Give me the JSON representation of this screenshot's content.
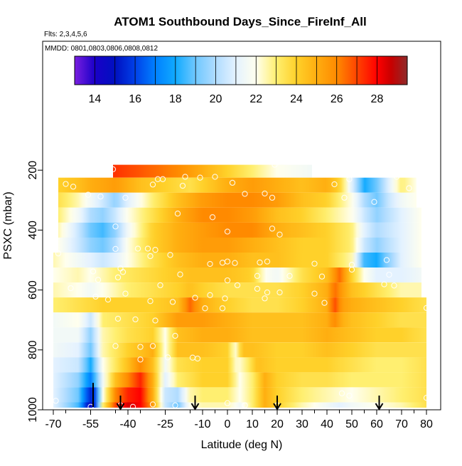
{
  "chart_data": {
    "type": "heatmap",
    "title": "ATOM1 Southbound Days_Since_FireInf_All",
    "flights_note": "Flts: 2,3,4,5,6",
    "dates_note": "MMDD: 0801,0803,0806,0808,0812",
    "xlabel": "Latitude (deg N)",
    "ylabel": "PSXC (mbar)",
    "xlim": [
      -70,
      80
    ],
    "ylim": [
      1000,
      0
    ],
    "x_ticks": [
      -70,
      -55,
      -40,
      -25,
      -10,
      0,
      10,
      20,
      30,
      40,
      50,
      60,
      70,
      80
    ],
    "x_tick_labels": [
      "-70",
      "-55",
      "-40",
      "-25",
      "-10",
      "0",
      "10",
      "20",
      "30",
      "40",
      "50",
      "60",
      "70",
      "80"
    ],
    "y_ticks": [
      200,
      400,
      600,
      800,
      1000
    ],
    "y_tick_labels": [
      "200",
      "400",
      "600",
      "800",
      "1000"
    ],
    "colorbar": {
      "range": [
        13,
        29.5
      ],
      "ticks": [
        14,
        16,
        18,
        20,
        22,
        24,
        26,
        28
      ],
      "tick_labels": [
        "14",
        "16",
        "18",
        "20",
        "22",
        "24",
        "26",
        "28"
      ],
      "stops": [
        {
          "value": 13,
          "color": "#7a1fe0"
        },
        {
          "value": 14,
          "color": "#1a00c8"
        },
        {
          "value": 15,
          "color": "#0010c0"
        },
        {
          "value": 16,
          "color": "#0040e8"
        },
        {
          "value": 17,
          "color": "#0080ff"
        },
        {
          "value": 18,
          "color": "#10aaff"
        },
        {
          "value": 19,
          "color": "#70c8ff"
        },
        {
          "value": 20,
          "color": "#b0dcff"
        },
        {
          "value": 21,
          "color": "#e4f2ff"
        },
        {
          "value": 22,
          "color": "#ffffee"
        },
        {
          "value": 23,
          "color": "#ffef70"
        },
        {
          "value": 24,
          "color": "#ffd12a"
        },
        {
          "value": 25,
          "color": "#ffae10"
        },
        {
          "value": 26,
          "color": "#ff8a00"
        },
        {
          "value": 27,
          "color": "#ff4400"
        },
        {
          "value": 28,
          "color": "#ff0000"
        },
        {
          "value": 28.7,
          "color": "#c80000"
        },
        {
          "value": 29.5,
          "color": "#8e2a2a"
        }
      ]
    },
    "rows": [
      {
        "p": 200,
        "xmin": -46,
        "xmax": 34,
        "kx": [
          -46,
          -40,
          -30,
          -20,
          -10,
          0,
          10,
          20,
          34
        ],
        "kv": [
          27.3,
          27,
          26.5,
          26,
          25,
          24,
          23,
          22,
          21.5
        ]
      },
      {
        "p": 250,
        "xmin": -68,
        "xmax": 76,
        "kx": [
          -68,
          -60,
          -55,
          -45,
          -35,
          -25,
          -15,
          0,
          10,
          20,
          30,
          40,
          45,
          50,
          55,
          60,
          65,
          70,
          76
        ],
        "kv": [
          24,
          24.5,
          25,
          25.5,
          24.5,
          24,
          23.5,
          25,
          25.5,
          25,
          24.5,
          25,
          24,
          21,
          18,
          19,
          21,
          23,
          22
        ]
      },
      {
        "p": 300,
        "xmin": -68,
        "xmax": 76,
        "kx": [
          -68,
          -60,
          -50,
          -45,
          -40,
          -30,
          -20,
          -10,
          0,
          10,
          20,
          30,
          40,
          50,
          55,
          60,
          65,
          70,
          76
        ],
        "kv": [
          23.5,
          22.5,
          20.5,
          19.5,
          21,
          23,
          24.5,
          25.5,
          26,
          26,
          25.5,
          24.5,
          24,
          22,
          20,
          19,
          20.5,
          21.5,
          22
        ]
      },
      {
        "p": 350,
        "xmin": -68,
        "xmax": 78,
        "kx": [
          -68,
          -60,
          -55,
          -50,
          -45,
          -40,
          -30,
          -20,
          -10,
          0,
          10,
          20,
          30,
          40,
          50,
          55,
          60,
          70,
          78
        ],
        "kv": [
          23,
          21.5,
          20,
          19.5,
          20.5,
          22,
          23.5,
          25,
          26,
          26,
          25.5,
          24.5,
          24,
          23,
          22,
          20.5,
          19.5,
          21,
          22
        ]
      },
      {
        "p": 400,
        "xmin": -68,
        "xmax": 78,
        "kx": [
          -68,
          -60,
          -55,
          -50,
          -45,
          -40,
          -30,
          -20,
          -10,
          0,
          10,
          20,
          30,
          40,
          50,
          55,
          60,
          70,
          78
        ],
        "kv": [
          22.5,
          20.5,
          19,
          18.5,
          19.5,
          21.5,
          24,
          25,
          25.5,
          26,
          26,
          25,
          24.5,
          24,
          23,
          21,
          20,
          21,
          22
        ]
      },
      {
        "p": 450,
        "xmin": -68,
        "xmax": 78,
        "kx": [
          -68,
          -60,
          -55,
          -50,
          -45,
          -40,
          -30,
          -20,
          -10,
          0,
          10,
          20,
          30,
          40,
          50,
          55,
          60,
          70,
          78
        ],
        "kv": [
          22,
          20.5,
          19.5,
          19,
          20,
          22,
          24,
          25,
          25.5,
          25.5,
          25,
          24.5,
          24,
          24,
          23,
          20.5,
          19.5,
          21,
          22
        ]
      },
      {
        "p": 500,
        "xmin": -70,
        "xmax": 78,
        "kx": [
          -70,
          -60,
          -55,
          -50,
          -45,
          -40,
          -30,
          -20,
          -10,
          0,
          10,
          20,
          30,
          40,
          50,
          55,
          60,
          65,
          70,
          78
        ],
        "kv": [
          22.5,
          21.5,
          21,
          20.5,
          21,
          22,
          23.5,
          24.5,
          25,
          25,
          24.5,
          24.5,
          24,
          24,
          22.5,
          18.5,
          18,
          19.5,
          21,
          22
        ]
      },
      {
        "p": 550,
        "xmin": -70,
        "xmax": 78,
        "kx": [
          -70,
          -60,
          -55,
          -45,
          -35,
          -25,
          -15,
          0,
          10,
          15,
          20,
          30,
          40,
          45,
          50,
          55,
          60,
          70,
          78
        ],
        "kv": [
          22,
          22.5,
          22,
          23,
          23.5,
          24,
          24.5,
          24.5,
          24,
          22,
          21.5,
          23.5,
          24.5,
          26.5,
          24,
          22,
          21,
          21,
          21.5
        ]
      },
      {
        "p": 600,
        "xmin": -70,
        "xmax": 78,
        "kx": [
          -70,
          -60,
          -55,
          -50,
          -40,
          -30,
          -20,
          -15,
          -10,
          0,
          10,
          20,
          30,
          40,
          43,
          46,
          50,
          60,
          70,
          78
        ],
        "kv": [
          22.5,
          22,
          21.5,
          22,
          23,
          23.5,
          24,
          24.5,
          24,
          23.5,
          23.5,
          23.5,
          24,
          25,
          26.5,
          25.5,
          24.5,
          23.5,
          22.5,
          22.5
        ]
      },
      {
        "p": 650,
        "xmin": -70,
        "xmax": 80,
        "kx": [
          -70,
          -60,
          -50,
          -40,
          -30,
          -20,
          -15,
          -10,
          0,
          10,
          20,
          30,
          40,
          43,
          46,
          50,
          60,
          70,
          80
        ],
        "kv": [
          23,
          23.5,
          24,
          24,
          24,
          24.5,
          26.5,
          25,
          24,
          23.5,
          23.5,
          24,
          25,
          27,
          25.5,
          25,
          24.5,
          24,
          23.5
        ]
      },
      {
        "p": 700,
        "xmin": -70,
        "xmax": 80,
        "kx": [
          -70,
          -60,
          -55,
          -50,
          -40,
          -30,
          -20,
          -10,
          0,
          10,
          20,
          30,
          40,
          43,
          46,
          50,
          60,
          70,
          80
        ],
        "kv": [
          21.5,
          22,
          20.5,
          23,
          23.5,
          24,
          25.5,
          25.5,
          25,
          24.5,
          24.5,
          24.5,
          25,
          26,
          25,
          24.5,
          24,
          23.5,
          23.5
        ]
      },
      {
        "p": 750,
        "xmin": -70,
        "xmax": 80,
        "kx": [
          -70,
          -60,
          -55,
          -50,
          -40,
          -30,
          -25,
          -20,
          -10,
          0,
          10,
          20,
          30,
          40,
          50,
          60,
          70,
          80
        ],
        "kv": [
          21.5,
          21.5,
          19.5,
          22.5,
          23.5,
          24,
          22,
          24.5,
          25,
          25,
          24.5,
          24.5,
          24.5,
          25,
          24.5,
          24,
          24,
          23.5
        ]
      },
      {
        "p": 800,
        "xmin": -70,
        "xmax": 80,
        "kx": [
          -70,
          -60,
          -55,
          -50,
          -40,
          -30,
          -25,
          -20,
          -10,
          0,
          3,
          6,
          10,
          20,
          30,
          40,
          50,
          60,
          70,
          80
        ],
        "kv": [
          21.5,
          21,
          19,
          22.5,
          24,
          25,
          22,
          24.5,
          24.5,
          24,
          22,
          24.5,
          24.5,
          24,
          24,
          24.5,
          24,
          23.5,
          23.5,
          23.5
        ]
      },
      {
        "p": 850,
        "xmin": -70,
        "xmax": 80,
        "kx": [
          -70,
          -60,
          -55,
          -50,
          -40,
          -35,
          -30,
          -25,
          -20,
          -10,
          0,
          4,
          8,
          12,
          20,
          30,
          40,
          50,
          60,
          70,
          80
        ],
        "kv": [
          21,
          20.5,
          18,
          22,
          24.5,
          26,
          24.5,
          21.5,
          23.5,
          24,
          24,
          22,
          23,
          24.5,
          24,
          24,
          24,
          23.5,
          23,
          23,
          23.5
        ]
      },
      {
        "p": 900,
        "xmin": -70,
        "xmax": 80,
        "kx": [
          -70,
          -60,
          -55,
          -50,
          -45,
          -40,
          -35,
          -30,
          -25,
          -20,
          -10,
          0,
          5,
          10,
          15,
          20,
          30,
          40,
          50,
          60,
          70,
          80
        ],
        "kv": [
          21,
          19.5,
          17,
          21.5,
          24.5,
          26,
          27.5,
          25,
          21,
          23,
          24,
          24,
          22,
          23,
          25,
          24,
          23.5,
          23.5,
          23,
          23,
          23,
          23.5
        ]
      },
      {
        "p": 950,
        "xmin": -70,
        "xmax": 80,
        "kx": [
          -70,
          -60,
          -56,
          -54,
          -50,
          -45,
          -40,
          -35,
          -30,
          -25,
          -20,
          -15,
          -10,
          0,
          5,
          10,
          15,
          20,
          30,
          40,
          50,
          60,
          70,
          80
        ],
        "kv": [
          21,
          19,
          16,
          15,
          22,
          26,
          27.5,
          28,
          25,
          20.5,
          20,
          22.5,
          23,
          23,
          22,
          23,
          25,
          24,
          23,
          22.5,
          22,
          22.5,
          23,
          23.5
        ]
      },
      {
        "p": 1000,
        "xmin": -70,
        "xmax": 80,
        "kx": [
          -70,
          -60,
          -56,
          -54,
          -50,
          -45,
          -40,
          -35,
          -30,
          -25,
          -20,
          -15,
          -10,
          0,
          5,
          10,
          15,
          20,
          30,
          40,
          45,
          50,
          60,
          70,
          80
        ],
        "kv": [
          21,
          18.5,
          15,
          14.5,
          23,
          27,
          28.5,
          28,
          25.5,
          20.5,
          19,
          22,
          22.5,
          22.5,
          21.5,
          23,
          25,
          24,
          22.5,
          21.5,
          21,
          21.5,
          22,
          22.5,
          23.5
        ]
      }
    ],
    "points": [
      {
        "x": -46,
        "p": 197
      },
      {
        "x": 19,
        "p": 182
      },
      {
        "x": -65,
        "p": 246
      },
      {
        "x": -62,
        "p": 255
      },
      {
        "x": -28,
        "p": 230
      },
      {
        "x": -26,
        "p": 230
      },
      {
        "x": -17,
        "p": 222
      },
      {
        "x": -11,
        "p": 225
      },
      {
        "x": -5,
        "p": 222
      },
      {
        "x": 2,
        "p": 242
      },
      {
        "x": 43,
        "p": 247
      },
      {
        "x": 49,
        "p": 230
      },
      {
        "x": 68,
        "p": 222
      },
      {
        "x": 73,
        "p": 260
      },
      {
        "x": -30,
        "p": 248
      },
      {
        "x": -18,
        "p": 252
      },
      {
        "x": -56,
        "p": 282
      },
      {
        "x": -51,
        "p": 288
      },
      {
        "x": -41,
        "p": 292
      },
      {
        "x": 7,
        "p": 279
      },
      {
        "x": 15,
        "p": 278
      },
      {
        "x": 18,
        "p": 292
      },
      {
        "x": 47,
        "p": 292
      },
      {
        "x": 59,
        "p": 306
      },
      {
        "x": -20,
        "p": 345
      },
      {
        "x": -6,
        "p": 357
      },
      {
        "x": -45,
        "p": 388
      },
      {
        "x": 18,
        "p": 395
      },
      {
        "x": 21,
        "p": 415
      },
      {
        "x": 0,
        "p": 405
      },
      {
        "x": -45,
        "p": 463
      },
      {
        "x": -36,
        "p": 462
      },
      {
        "x": -32,
        "p": 462
      },
      {
        "x": -29,
        "p": 466
      },
      {
        "x": -68,
        "p": 478
      },
      {
        "x": -23,
        "p": 483
      },
      {
        "x": -31,
        "p": 487
      },
      {
        "x": 0,
        "p": 505
      },
      {
        "x": 3,
        "p": 510
      },
      {
        "x": 13,
        "p": 508
      },
      {
        "x": 16,
        "p": 505
      },
      {
        "x": 35,
        "p": 512
      },
      {
        "x": 50,
        "p": 516
      },
      {
        "x": 64,
        "p": 500
      },
      {
        "x": -7,
        "p": 513
      },
      {
        "x": -2,
        "p": 509
      },
      {
        "x": 50,
        "p": 532
      },
      {
        "x": -54,
        "p": 538
      },
      {
        "x": -43,
        "p": 528
      },
      {
        "x": -42,
        "p": 540
      },
      {
        "x": -19,
        "p": 548
      },
      {
        "x": 12,
        "p": 553
      },
      {
        "x": 25,
        "p": 553
      },
      {
        "x": 38,
        "p": 555
      },
      {
        "x": 65,
        "p": 549
      },
      {
        "x": -44,
        "p": 558
      },
      {
        "x": 0,
        "p": 568
      },
      {
        "x": -52,
        "p": 566
      },
      {
        "x": -63,
        "p": 594
      },
      {
        "x": -27,
        "p": 584
      },
      {
        "x": 4,
        "p": 584
      },
      {
        "x": 12,
        "p": 596
      },
      {
        "x": 16,
        "p": 608
      },
      {
        "x": 21,
        "p": 608
      },
      {
        "x": 63,
        "p": 581
      },
      {
        "x": 67,
        "p": 585
      },
      {
        "x": -41,
        "p": 612
      },
      {
        "x": -13,
        "p": 626
      },
      {
        "x": -7,
        "p": 617
      },
      {
        "x": -1,
        "p": 628
      },
      {
        "x": 15,
        "p": 628
      },
      {
        "x": 39,
        "p": 643
      },
      {
        "x": 80,
        "p": 660
      },
      {
        "x": -53,
        "p": 622
      },
      {
        "x": -48,
        "p": 632
      },
      {
        "x": -31,
        "p": 637
      },
      {
        "x": -22,
        "p": 640
      },
      {
        "x": 35,
        "p": 612
      },
      {
        "x": -9,
        "p": 661
      },
      {
        "x": -2,
        "p": 661
      },
      {
        "x": -44,
        "p": 696
      },
      {
        "x": -37,
        "p": 698
      },
      {
        "x": -29,
        "p": 702
      },
      {
        "x": -21,
        "p": 753
      },
      {
        "x": -45,
        "p": 787
      },
      {
        "x": -35,
        "p": 790
      },
      {
        "x": -30,
        "p": 787
      },
      {
        "x": -24,
        "p": 825
      },
      {
        "x": -35,
        "p": 832
      },
      {
        "x": -14,
        "p": 826
      },
      {
        "x": -12,
        "p": 829
      },
      {
        "x": 46,
        "p": 945
      },
      {
        "x": 49,
        "p": 953
      },
      {
        "x": -69,
        "p": 970
      },
      {
        "x": -55,
        "p": 990
      },
      {
        "x": -43,
        "p": 985
      },
      {
        "x": -38,
        "p": 990
      },
      {
        "x": -21,
        "p": 985
      },
      {
        "x": 7,
        "p": 985
      },
      {
        "x": 20,
        "p": 985
      },
      {
        "x": 35,
        "p": 1012
      },
      {
        "x": 80,
        "p": 960
      },
      {
        "x": -30,
        "p": 982
      },
      {
        "x": 0,
        "p": 978
      }
    ],
    "arrows_at_latitude": [
      -43,
      -13,
      20,
      61
    ],
    "marker_at_latitude": -54
  }
}
